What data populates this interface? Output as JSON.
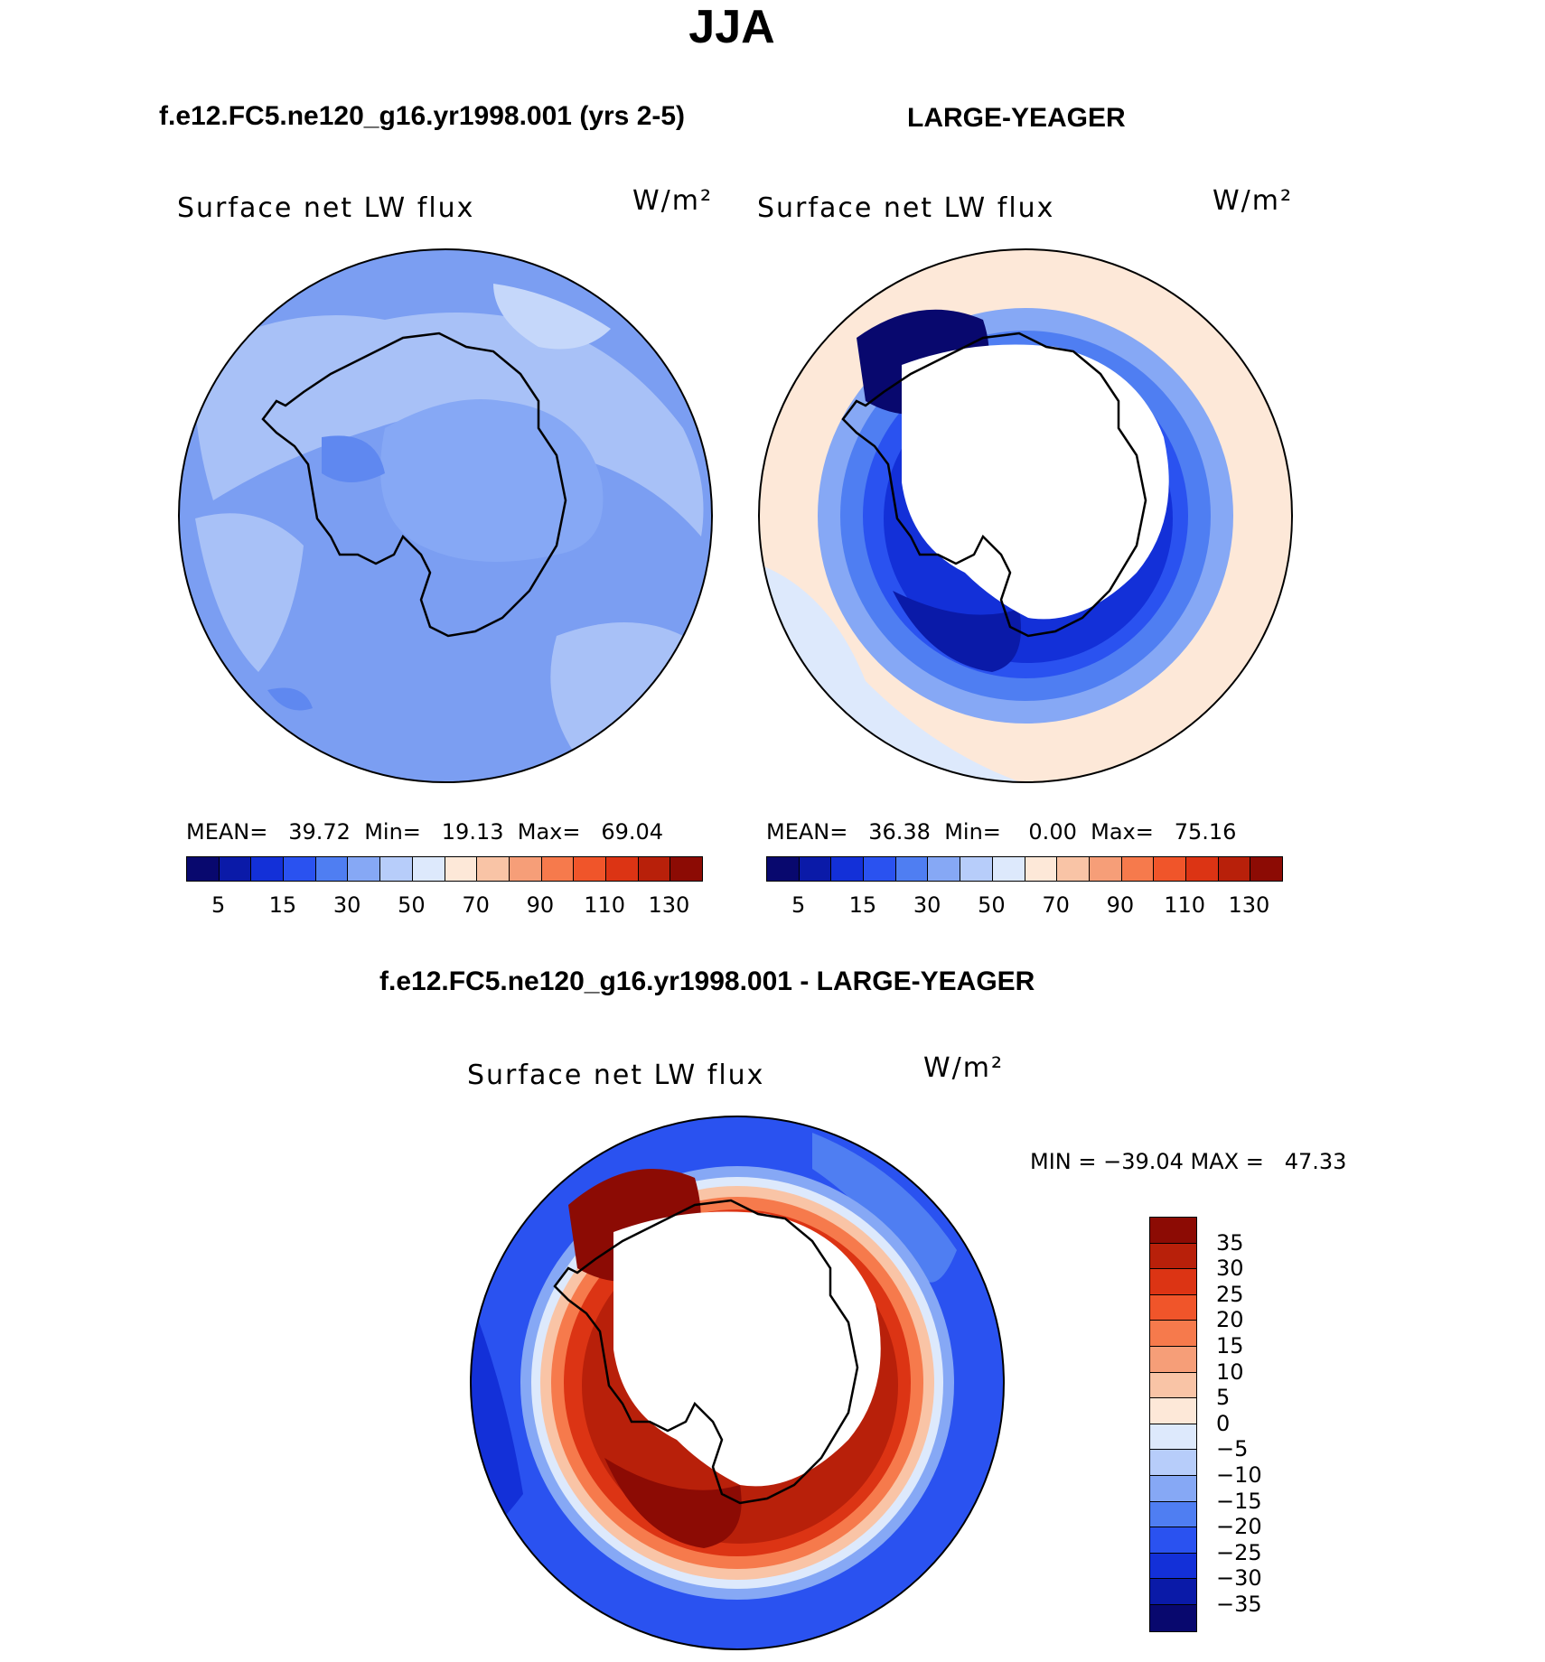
{
  "title": "JJA",
  "panels": [
    {
      "heading": "f.e12.FC5.ne120_g16.yr1998.001 (yrs 2-5)",
      "variable": "Surface net LW flux",
      "units": "W/m²",
      "stats_line": "MEAN=   39.72  Min=   19.13  Max=   69.04",
      "colorbar_ticks": [
        "5",
        "15",
        "30",
        "50",
        "70",
        "90",
        "110",
        "130"
      ]
    },
    {
      "heading": "LARGE-YEAGER",
      "variable": "Surface net LW flux",
      "units": "W/m²",
      "stats_line": "MEAN=   36.38  Min=    0.00  Max=   75.16",
      "colorbar_ticks": [
        "5",
        "15",
        "30",
        "50",
        "70",
        "90",
        "110",
        "130"
      ]
    },
    {
      "heading": "f.e12.FC5.ne120_g16.yr1998.001 - LARGE-YEAGER",
      "variable": "Surface net LW flux",
      "units": "W/m²",
      "stats_line": "MIN = −39.04 MAX =   47.33",
      "colorbar_ticks": [
        "35",
        "30",
        "25",
        "20",
        "15",
        "10",
        "5",
        "0",
        "−5",
        "−10",
        "−15",
        "−20",
        "−25",
        "−30",
        "−35"
      ]
    }
  ],
  "colors": {
    "abs_scale": [
      "#08086e",
      "#0a1aa8",
      "#1330d8",
      "#2a52f0",
      "#4f7ef2",
      "#86a8f5",
      "#b7cdfa",
      "#dde9fc",
      "#fde8d8",
      "#f9c4a6",
      "#f69e78",
      "#f67a4c",
      "#f0552a",
      "#dc3414",
      "#b8200a",
      "#8c0b04"
    ],
    "diff_scale": [
      "#8c0b04",
      "#b8200a",
      "#dc3414",
      "#f0552a",
      "#f67a4c",
      "#f69e78",
      "#f9c4a6",
      "#fde8d8",
      "#dde9fc",
      "#b7cdfa",
      "#86a8f5",
      "#4f7ef2",
      "#2a52f0",
      "#1330d8",
      "#0a1aa8",
      "#08086e"
    ]
  }
}
